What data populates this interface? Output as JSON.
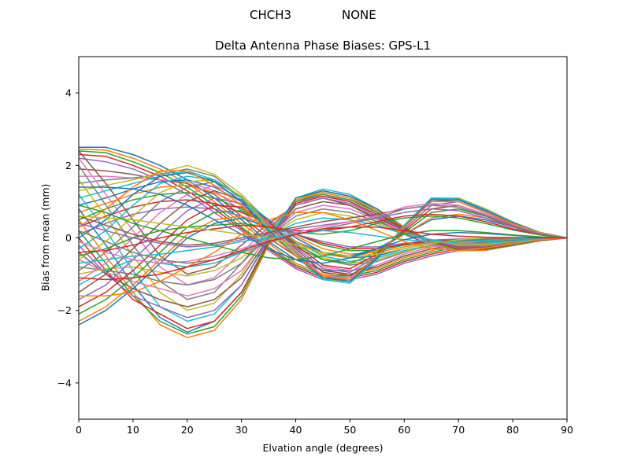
{
  "figure": {
    "suptitle_left": "CHCH3",
    "suptitle_right": "NONE"
  },
  "chart_data": {
    "type": "line",
    "title": "Delta Antenna Phase Biases: GPS-L1",
    "xlabel": "Elvation angle (degrees)",
    "ylabel": "Bias from mean (mm)",
    "xlim": [
      0,
      90
    ],
    "ylim": [
      -5,
      5
    ],
    "xticks": [
      0,
      10,
      20,
      30,
      40,
      50,
      60,
      70,
      80,
      90
    ],
    "yticks": [
      -4,
      -2,
      0,
      2,
      4
    ],
    "ytick_labels": [
      "−4",
      "−2",
      "0",
      "2",
      "4"
    ],
    "grid": false,
    "legend": "none",
    "x": [
      0,
      5,
      10,
      15,
      20,
      25,
      30,
      35,
      40,
      45,
      50,
      55,
      60,
      65,
      70,
      75,
      80,
      85,
      90
    ],
    "palette": [
      "#1f77b4",
      "#ff7f0e",
      "#2ca02c",
      "#d62728",
      "#9467bd",
      "#8c564b",
      "#e377c2",
      "#7f7f7f",
      "#bcbd22",
      "#17becf"
    ],
    "series": [
      {
        "values": [
          2.5,
          2.5,
          2.3,
          2.0,
          1.6,
          1.1,
          0.5,
          -0.1,
          -0.6,
          -0.9,
          -0.9,
          -0.8,
          -0.5,
          -0.3,
          -0.2,
          -0.1,
          -0.05,
          0.0,
          0.0
        ]
      },
      {
        "values": [
          2.45,
          2.42,
          2.2,
          1.9,
          1.5,
          1.0,
          0.4,
          -0.15,
          -0.7,
          -1.0,
          -1.0,
          -0.85,
          -0.55,
          -0.35,
          -0.2,
          -0.12,
          -0.05,
          0.0,
          0.0
        ]
      },
      {
        "values": [
          2.4,
          2.35,
          2.1,
          1.8,
          1.4,
          0.9,
          0.3,
          -0.25,
          -0.75,
          -1.05,
          -1.05,
          -0.9,
          -0.6,
          -0.4,
          -0.25,
          -0.15,
          -0.08,
          -0.02,
          0.0
        ]
      },
      {
        "values": [
          2.3,
          2.25,
          2.0,
          1.7,
          1.3,
          0.8,
          0.25,
          -0.3,
          -0.8,
          -1.1,
          -1.1,
          -0.95,
          -0.65,
          -0.45,
          -0.3,
          -0.18,
          -0.1,
          -0.03,
          0.0
        ]
      },
      {
        "values": [
          2.2,
          2.1,
          1.9,
          1.6,
          1.2,
          0.7,
          0.2,
          -0.35,
          -0.85,
          -1.15,
          -1.15,
          -1.0,
          -0.7,
          -0.5,
          -0.35,
          -0.2,
          -0.12,
          -0.04,
          0.0
        ]
      },
      {
        "values": [
          1.9,
          1.85,
          1.75,
          1.6,
          1.5,
          1.2,
          0.6,
          0.0,
          -0.5,
          -0.9,
          -1.0,
          -0.8,
          -0.5,
          -0.3,
          -0.2,
          -0.1,
          -0.05,
          0.0,
          0.0
        ]
      },
      {
        "values": [
          1.7,
          1.7,
          1.65,
          1.6,
          1.55,
          1.3,
          0.75,
          0.1,
          -0.45,
          -0.8,
          -0.9,
          -0.75,
          -0.45,
          -0.25,
          -0.15,
          -0.08,
          -0.04,
          0.0,
          0.0
        ]
      },
      {
        "values": [
          1.5,
          1.6,
          1.65,
          1.75,
          1.9,
          1.7,
          1.1,
          0.35,
          -0.25,
          -0.6,
          -0.75,
          -0.65,
          -0.4,
          -0.2,
          -0.1,
          -0.05,
          -0.02,
          0.0,
          0.0
        ]
      },
      {
        "values": [
          1.3,
          1.45,
          1.6,
          1.8,
          2.0,
          1.75,
          1.2,
          0.45,
          -0.2,
          -0.55,
          -0.7,
          -0.6,
          -0.38,
          -0.22,
          -0.12,
          -0.06,
          -0.02,
          0.0,
          0.0
        ]
      },
      {
        "values": [
          1.1,
          1.3,
          1.5,
          1.7,
          1.85,
          1.6,
          1.1,
          0.5,
          -0.1,
          -0.5,
          -0.65,
          -0.55,
          -0.35,
          -0.2,
          -0.1,
          -0.05,
          -0.02,
          0.0,
          0.0
        ]
      },
      {
        "values": [
          0.9,
          1.1,
          1.35,
          1.55,
          1.6,
          1.4,
          1.0,
          0.5,
          0.0,
          -0.4,
          -0.55,
          -0.5,
          -0.3,
          -0.15,
          -0.08,
          -0.04,
          -0.02,
          0.0,
          0.0
        ]
      },
      {
        "values": [
          0.7,
          0.95,
          1.2,
          1.4,
          1.45,
          1.25,
          0.9,
          0.45,
          0.05,
          -0.3,
          -0.45,
          -0.4,
          -0.25,
          -0.12,
          -0.06,
          -0.03,
          -0.01,
          0.0,
          0.0
        ]
      },
      {
        "values": [
          0.5,
          0.8,
          1.05,
          1.2,
          1.25,
          1.1,
          0.8,
          0.4,
          0.1,
          -0.2,
          -0.35,
          -0.35,
          -0.2,
          -0.1,
          -0.05,
          -0.02,
          -0.01,
          0.0,
          0.0
        ]
      },
      {
        "values": [
          0.3,
          0.6,
          0.85,
          1.0,
          1.05,
          0.95,
          0.7,
          0.4,
          0.1,
          -0.15,
          -0.3,
          -0.3,
          -0.18,
          -0.08,
          -0.04,
          -0.02,
          -0.01,
          0.0,
          0.0
        ]
      },
      {
        "values": [
          0.1,
          0.4,
          0.65,
          0.8,
          0.85,
          0.8,
          0.6,
          0.35,
          0.1,
          -0.1,
          -0.25,
          -0.25,
          -0.15,
          -0.06,
          -0.03,
          -0.01,
          0.0,
          0.0,
          0.0
        ]
      },
      {
        "values": [
          2.4,
          1.5,
          0.5,
          -0.5,
          -1.0,
          -0.8,
          -0.2,
          0.4,
          0.9,
          1.1,
          0.9,
          0.5,
          0.1,
          -0.2,
          -0.3,
          -0.25,
          -0.15,
          -0.05,
          0.0
        ]
      },
      {
        "values": [
          2.2,
          1.2,
          0.2,
          -0.8,
          -1.3,
          -1.1,
          -0.4,
          0.3,
          0.95,
          1.2,
          1.0,
          0.6,
          0.15,
          -0.2,
          -0.35,
          -0.3,
          -0.18,
          -0.06,
          0.0
        ]
      },
      {
        "values": [
          2.0,
          0.9,
          -0.2,
          -1.2,
          -1.7,
          -1.5,
          -0.7,
          0.2,
          1.0,
          1.25,
          1.1,
          0.7,
          0.2,
          -0.15,
          -0.35,
          -0.32,
          -0.2,
          -0.07,
          0.0
        ]
      },
      {
        "values": [
          1.6,
          0.6,
          -0.5,
          -1.5,
          -2.0,
          -1.8,
          -1.0,
          0.1,
          1.05,
          1.3,
          1.15,
          0.75,
          0.25,
          -0.12,
          -0.35,
          -0.33,
          -0.2,
          -0.07,
          0.0
        ]
      },
      {
        "values": [
          1.2,
          0.2,
          -0.9,
          -1.9,
          -2.3,
          -2.1,
          -1.3,
          0.0,
          1.1,
          1.35,
          1.2,
          0.8,
          0.3,
          -0.1,
          -0.35,
          -0.34,
          -0.21,
          -0.08,
          0.0
        ]
      },
      {
        "values": [
          0.8,
          -0.2,
          -1.3,
          -2.2,
          -2.6,
          -2.3,
          -1.5,
          -0.1,
          1.1,
          1.3,
          1.15,
          0.8,
          0.3,
          -0.1,
          -0.35,
          -0.34,
          -0.21,
          -0.08,
          0.0
        ]
      },
      {
        "values": [
          0.5,
          -0.5,
          -1.5,
          -2.4,
          -2.75,
          -2.55,
          -1.7,
          -0.2,
          1.05,
          1.25,
          1.1,
          0.75,
          0.3,
          -0.1,
          -0.35,
          -0.34,
          -0.21,
          -0.08,
          0.0
        ]
      },
      {
        "values": [
          0.2,
          -0.7,
          -1.6,
          -2.3,
          -2.65,
          -2.45,
          -1.6,
          -0.15,
          1.0,
          1.2,
          1.05,
          0.7,
          0.28,
          -0.1,
          -0.33,
          -0.32,
          -0.2,
          -0.07,
          0.0
        ]
      },
      {
        "values": [
          0.0,
          -0.9,
          -1.7,
          -2.1,
          -2.5,
          -2.3,
          -1.5,
          -0.1,
          0.95,
          1.15,
          1.0,
          0.65,
          0.25,
          -0.1,
          -0.3,
          -0.3,
          -0.18,
          -0.06,
          0.0
        ]
      },
      {
        "values": [
          -0.2,
          -1.0,
          -1.6,
          -1.9,
          -2.2,
          -2.0,
          -1.3,
          -0.05,
          0.9,
          1.1,
          0.95,
          0.6,
          0.22,
          -0.08,
          -0.28,
          -0.28,
          -0.17,
          -0.06,
          0.0
        ]
      },
      {
        "values": [
          -0.4,
          -1.0,
          -1.4,
          -1.7,
          -1.9,
          -1.7,
          -1.1,
          0.0,
          0.8,
          1.0,
          0.9,
          0.55,
          0.2,
          -0.07,
          -0.25,
          -0.25,
          -0.15,
          -0.05,
          0.0
        ]
      },
      {
        "values": [
          -0.6,
          -0.95,
          -1.2,
          -1.4,
          -1.6,
          -1.4,
          -0.9,
          0.05,
          0.7,
          0.9,
          0.8,
          0.5,
          0.18,
          -0.06,
          -0.22,
          -0.22,
          -0.13,
          -0.05,
          0.0
        ]
      },
      {
        "values": [
          -0.8,
          -0.9,
          -1.0,
          -1.2,
          -1.3,
          -1.15,
          -0.7,
          0.05,
          0.6,
          0.8,
          0.7,
          0.45,
          0.15,
          -0.05,
          -0.2,
          -0.2,
          -0.12,
          -0.04,
          0.0
        ]
      },
      {
        "values": [
          -1.0,
          -0.85,
          -0.8,
          -0.95,
          -1.05,
          -0.9,
          -0.55,
          0.05,
          0.5,
          0.7,
          0.6,
          0.4,
          0.12,
          -0.05,
          -0.18,
          -0.18,
          -0.1,
          -0.04,
          0.0
        ]
      },
      {
        "values": [
          -1.3,
          -0.9,
          -0.6,
          -0.7,
          -0.8,
          -0.7,
          -0.4,
          0.05,
          0.4,
          0.55,
          0.5,
          0.35,
          0.1,
          -0.05,
          -0.15,
          -0.15,
          -0.09,
          -0.03,
          0.0
        ]
      },
      {
        "values": [
          -2.4,
          -2.0,
          -1.4,
          -0.7,
          0.0,
          0.4,
          0.55,
          0.3,
          -0.1,
          -0.4,
          -0.5,
          -0.3,
          0.1,
          0.5,
          0.6,
          0.5,
          0.3,
          0.1,
          0.0
        ]
      },
      {
        "values": [
          -2.3,
          -1.9,
          -1.3,
          -0.6,
          0.1,
          0.5,
          0.6,
          0.35,
          -0.1,
          -0.45,
          -0.55,
          -0.35,
          0.1,
          0.55,
          0.65,
          0.55,
          0.32,
          0.11,
          0.0
        ]
      },
      {
        "values": [
          -2.1,
          -1.7,
          -1.1,
          -0.4,
          0.3,
          0.7,
          0.75,
          0.4,
          -0.15,
          -0.6,
          -0.7,
          -0.4,
          0.15,
          0.7,
          0.8,
          0.6,
          0.35,
          0.12,
          0.0
        ]
      },
      {
        "values": [
          -1.9,
          -1.5,
          -0.9,
          -0.2,
          0.5,
          0.9,
          0.85,
          0.4,
          -0.2,
          -0.75,
          -0.85,
          -0.45,
          0.2,
          0.8,
          0.9,
          0.65,
          0.38,
          0.13,
          0.0
        ]
      },
      {
        "values": [
          -1.7,
          -1.3,
          -0.6,
          0.1,
          0.75,
          1.1,
          0.95,
          0.45,
          -0.25,
          -0.85,
          -0.95,
          -0.5,
          0.25,
          0.9,
          1.0,
          0.7,
          0.4,
          0.14,
          0.0
        ]
      },
      {
        "values": [
          -1.5,
          -1.0,
          -0.3,
          0.4,
          1.0,
          1.3,
          1.05,
          0.45,
          -0.3,
          -0.95,
          -1.05,
          -0.55,
          0.3,
          1.0,
          1.05,
          0.75,
          0.42,
          0.15,
          0.0
        ]
      },
      {
        "values": [
          -1.2,
          -0.7,
          0.0,
          0.7,
          1.2,
          1.45,
          1.1,
          0.4,
          -0.35,
          -1.05,
          -1.1,
          -0.6,
          0.35,
          1.05,
          1.1,
          0.78,
          0.43,
          0.15,
          0.0
        ]
      },
      {
        "values": [
          -0.9,
          -0.4,
          0.3,
          1.0,
          1.4,
          1.55,
          1.15,
          0.35,
          -0.4,
          -1.1,
          -1.15,
          -0.6,
          0.35,
          1.08,
          1.1,
          0.8,
          0.44,
          0.15,
          0.0
        ]
      },
      {
        "values": [
          -0.6,
          -0.1,
          0.6,
          1.25,
          1.55,
          1.6,
          1.15,
          0.3,
          -0.45,
          -1.15,
          -1.2,
          -0.6,
          0.35,
          1.1,
          1.1,
          0.8,
          0.44,
          0.15,
          0.0
        ]
      },
      {
        "values": [
          -0.3,
          0.2,
          0.9,
          1.5,
          1.7,
          1.6,
          1.1,
          0.25,
          -0.5,
          -1.15,
          -1.25,
          -0.6,
          0.35,
          1.1,
          1.08,
          0.78,
          0.43,
          0.15,
          0.0
        ]
      },
      {
        "values": [
          0.0,
          0.5,
          1.2,
          1.7,
          1.8,
          1.55,
          1.0,
          0.2,
          -0.5,
          -1.1,
          -1.2,
          -0.55,
          0.3,
          1.05,
          1.05,
          0.75,
          0.42,
          0.14,
          0.0
        ]
      },
      {
        "values": [
          0.3,
          0.8,
          1.4,
          1.85,
          1.85,
          1.45,
          0.9,
          0.15,
          -0.5,
          -1.05,
          -1.15,
          -0.5,
          0.3,
          1.0,
          1.0,
          0.72,
          0.4,
          0.14,
          0.0
        ]
      },
      {
        "values": [
          -0.5,
          -0.3,
          0.0,
          0.2,
          0.3,
          0.35,
          0.4,
          0.3,
          0.15,
          0.1,
          0.2,
          0.4,
          0.55,
          0.6,
          0.55,
          0.4,
          0.22,
          0.08,
          0.0
        ]
      },
      {
        "values": [
          -0.4,
          -0.35,
          -0.2,
          0.0,
          0.15,
          0.25,
          0.35,
          0.3,
          0.2,
          0.2,
          0.3,
          0.45,
          0.6,
          0.65,
          0.6,
          0.45,
          0.25,
          0.09,
          0.0
        ]
      },
      {
        "values": [
          0.4,
          0.2,
          0.0,
          -0.15,
          -0.25,
          -0.2,
          -0.05,
          0.1,
          0.25,
          0.35,
          0.45,
          0.55,
          0.7,
          0.8,
          0.75,
          0.55,
          0.3,
          0.1,
          0.0
        ]
      },
      {
        "values": [
          0.6,
          0.35,
          0.1,
          -0.1,
          -0.2,
          -0.15,
          0.0,
          0.15,
          0.3,
          0.45,
          0.55,
          0.65,
          0.8,
          0.9,
          0.85,
          0.6,
          0.33,
          0.11,
          0.0
        ]
      },
      {
        "values": [
          -0.1,
          -0.4,
          -0.6,
          -0.7,
          -0.65,
          -0.5,
          -0.3,
          -0.05,
          0.15,
          0.3,
          0.45,
          0.6,
          0.85,
          0.95,
          0.9,
          0.65,
          0.36,
          0.12,
          0.0
        ]
      },
      {
        "values": [
          0.2,
          -0.1,
          -0.4,
          -0.6,
          -0.7,
          -0.6,
          -0.4,
          -0.15,
          0.1,
          0.25,
          0.4,
          0.55,
          0.8,
          0.9,
          0.85,
          0.62,
          0.34,
          0.11,
          0.0
        ]
      },
      {
        "values": [
          0.6,
          0.55,
          0.5,
          0.4,
          0.3,
          0.2,
          0.1,
          0.0,
          -0.2,
          -0.4,
          -0.5,
          -0.45,
          -0.3,
          -0.15,
          -0.05,
          0.0,
          0.0,
          0.0,
          0.0
        ]
      },
      {
        "values": [
          -0.7,
          -0.6,
          -0.5,
          -0.45,
          -0.35,
          -0.25,
          -0.1,
          0.0,
          0.1,
          0.2,
          0.15,
          0.05,
          -0.05,
          -0.1,
          -0.1,
          -0.08,
          -0.04,
          -0.01,
          0.0
        ]
      },
      {
        "values": [
          1.4,
          1.4,
          1.35,
          1.2,
          0.9,
          0.5,
          0.1,
          -0.3,
          -0.6,
          -0.7,
          -0.55,
          -0.3,
          -0.05,
          0.1,
          0.15,
          0.12,
          0.07,
          0.02,
          0.0
        ]
      },
      {
        "values": [
          -1.6,
          -1.6,
          -1.5,
          -1.2,
          -0.8,
          -0.4,
          0.1,
          0.5,
          0.7,
          0.7,
          0.5,
          0.2,
          -0.1,
          -0.3,
          -0.35,
          -0.28,
          -0.16,
          -0.05,
          0.0
        ]
      },
      {
        "values": [
          0.9,
          0.7,
          0.4,
          0.2,
          0.0,
          -0.2,
          -0.4,
          -0.55,
          -0.6,
          -0.5,
          -0.3,
          -0.1,
          0.1,
          0.2,
          0.2,
          0.15,
          0.08,
          0.03,
          0.0
        ]
      },
      {
        "values": [
          -1.1,
          -1.15,
          -1.1,
          -1.0,
          -0.8,
          -0.6,
          -0.35,
          -0.1,
          0.1,
          0.25,
          0.3,
          0.3,
          0.2,
          0.1,
          0.05,
          0.02,
          0.01,
          0.0,
          0.0
        ]
      }
    ]
  }
}
